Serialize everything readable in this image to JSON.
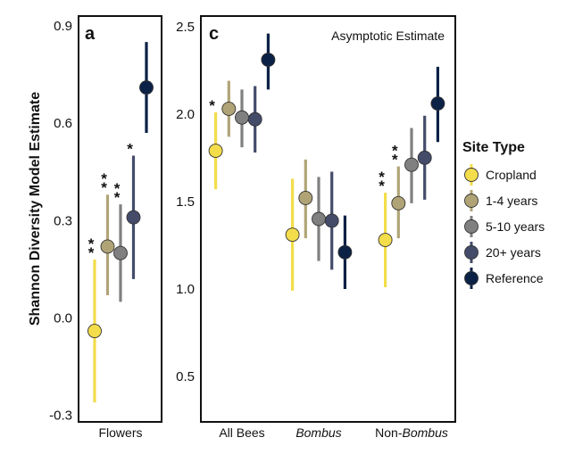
{
  "chart_data": [
    {
      "panel": "a",
      "type": "scatter",
      "error_bars": true,
      "ylabel": "Shannon Diversity Model Estimate",
      "ylim": [
        -0.32,
        0.93
      ],
      "yticks": [
        "-0.3",
        "0.0",
        "0.3",
        "0.6",
        "0.9"
      ],
      "ytick_values": [
        -0.3,
        0.0,
        0.3,
        0.6,
        0.9
      ],
      "categories": [
        "Flowers"
      ],
      "series": [
        {
          "name": "Cropland",
          "color": "#f3dd4a",
          "values": [
            -0.04
          ],
          "lower": [
            -0.26
          ],
          "upper": [
            0.18
          ],
          "stars": [
            "*",
            "*"
          ]
        },
        {
          "name": "1-4 years",
          "color": "#b0a477",
          "values": [
            0.22
          ],
          "lower": [
            0.07
          ],
          "upper": [
            0.38
          ],
          "stars": [
            "*",
            "*"
          ]
        },
        {
          "name": "5-10 years",
          "color": "#808080",
          "values": [
            0.2
          ],
          "lower": [
            0.05
          ],
          "upper": [
            0.35
          ],
          "stars": [
            "*",
            "*"
          ]
        },
        {
          "name": "20+ years",
          "color": "#444c6a",
          "values": [
            0.31
          ],
          "lower": [
            0.12
          ],
          "upper": [
            0.5
          ],
          "stars": [
            "*"
          ]
        },
        {
          "name": "Reference",
          "color": "#0c2146",
          "values": [
            0.71
          ],
          "lower": [
            0.57
          ],
          "upper": [
            0.85
          ],
          "stars": []
        }
      ]
    },
    {
      "panel": "c",
      "type": "scatter",
      "error_bars": true,
      "annotation": "Asymptotic Estimate",
      "ylim": [
        0.24,
        2.56
      ],
      "yticks": [
        "0.5",
        "1.0",
        "1.5",
        "2.0",
        "2.5"
      ],
      "ytick_values": [
        0.5,
        1.0,
        1.5,
        2.0,
        2.5
      ],
      "categories": [
        "All Bees",
        "Bombus",
        "Non-Bombus"
      ],
      "category_parts": [
        [
          {
            "text": "All Bees",
            "italic": false
          }
        ],
        [
          {
            "text": "Bombus",
            "italic": true
          }
        ],
        [
          {
            "text": "Non-",
            "italic": false
          },
          {
            "text": "Bombus",
            "italic": true
          }
        ]
      ],
      "series": [
        {
          "name": "Cropland",
          "color": "#f3dd4a",
          "values": [
            1.79,
            1.31,
            1.28
          ],
          "lower": [
            1.57,
            0.99,
            1.01
          ],
          "upper": [
            2.01,
            1.63,
            1.55
          ],
          "stars": [
            [
              "*"
            ],
            [],
            [
              "*",
              "*"
            ]
          ]
        },
        {
          "name": "1-4 years",
          "color": "#b0a477",
          "values": [
            2.03,
            1.52,
            1.49
          ],
          "lower": [
            1.87,
            1.29,
            1.29
          ],
          "upper": [
            2.19,
            1.74,
            1.7
          ],
          "stars": [
            [],
            [],
            [
              "*",
              "*"
            ]
          ]
        },
        {
          "name": "5-10 years",
          "color": "#808080",
          "values": [
            1.98,
            1.4,
            1.71
          ],
          "lower": [
            1.81,
            1.16,
            1.49
          ],
          "upper": [
            2.14,
            1.64,
            1.92
          ],
          "stars": [
            [],
            [],
            []
          ]
        },
        {
          "name": "20+ years",
          "color": "#444c6a",
          "values": [
            1.97,
            1.39,
            1.75
          ],
          "lower": [
            1.78,
            1.11,
            1.51
          ],
          "upper": [
            2.16,
            1.67,
            1.99
          ],
          "stars": [
            [],
            [],
            []
          ]
        },
        {
          "name": "Reference",
          "color": "#0c2146",
          "values": [
            2.31,
            1.21,
            2.06
          ],
          "lower": [
            2.14,
            1.0,
            1.84
          ],
          "upper": [
            2.46,
            1.42,
            2.27
          ],
          "stars": [
            [],
            [],
            []
          ]
        }
      ]
    }
  ],
  "legend": {
    "title": "Site Type",
    "placement": "right",
    "items": [
      {
        "label": "Cropland",
        "color": "#f3dd4a"
      },
      {
        "label": "1-4 years",
        "color": "#b0a477"
      },
      {
        "label": "5-10 years",
        "color": "#808080"
      },
      {
        "label": "20+ years",
        "color": "#444c6a"
      },
      {
        "label": "Reference",
        "color": "#0c2146"
      }
    ]
  }
}
